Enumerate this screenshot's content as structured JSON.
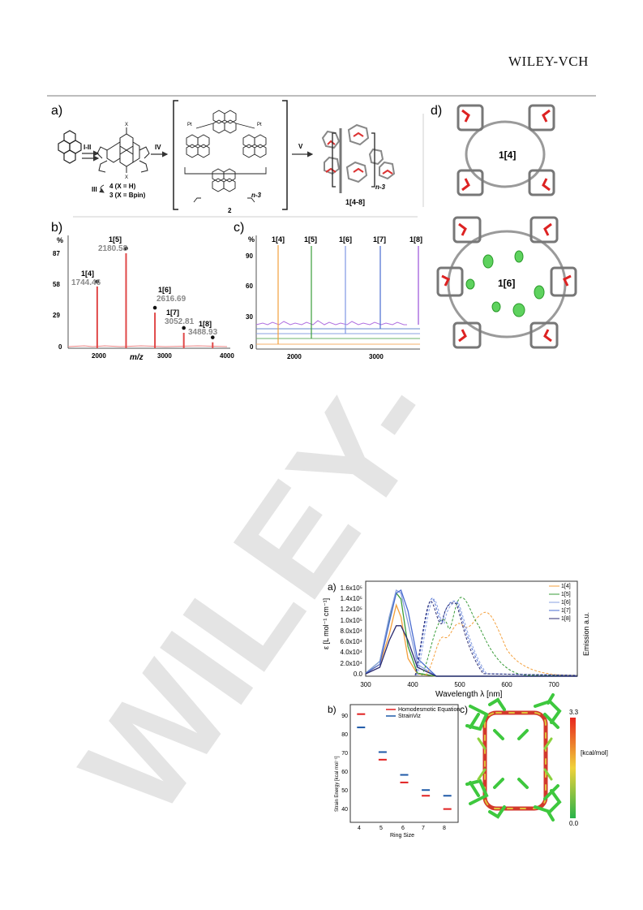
{
  "header": {
    "publisher": "WILEY-VCH"
  },
  "watermark": {
    "text": "WILEY-"
  },
  "figure1": {
    "a": {
      "label": "a)",
      "steps": [
        "I-II",
        "III",
        "IV",
        "V"
      ],
      "compound4": "4 (X = H)",
      "compound3": "3 (X = Bpin)",
      "compound2": "2",
      "n_label": "n-3",
      "product": "1[4-8]"
    },
    "b": {
      "label": "b)",
      "y_unit": "%",
      "y_ticks": [
        "87",
        "58",
        "29",
        "0"
      ],
      "x_ticks": [
        "2000",
        "3000",
        "4000"
      ],
      "xlabel": "m/z",
      "peaks": [
        {
          "name": "1[4]",
          "mz": "1744.46"
        },
        {
          "name": "1[5]",
          "mz": "2180.58"
        },
        {
          "name": "1[6]",
          "mz": "2616.69"
        },
        {
          "name": "1[7]",
          "mz": "3052.81"
        },
        {
          "name": "1[8]",
          "mz": "3488.93"
        }
      ]
    },
    "c": {
      "label": "c)",
      "y_unit": "%",
      "y_ticks": [
        "90",
        "60",
        "30",
        "0"
      ],
      "x_ticks": [
        "2000",
        "3000"
      ],
      "peaks": [
        "1[4]",
        "1[5]",
        "1[6]",
        "1[7]",
        "1[8]"
      ]
    },
    "d": {
      "label": "d)",
      "top": "1[4]",
      "bottom": "1[6]"
    }
  },
  "figure2": {
    "a": {
      "label": "a)",
      "ylabel": "ε [L mol⁻¹ cm⁻¹]",
      "y2label": "Emission a.u.",
      "xlabel": "Wavelength λ [nm]",
      "y_ticks": [
        "1.6x10⁵",
        "1.4x10⁵",
        "1.2x10⁵",
        "1.0x10⁵",
        "8.0x10⁴",
        "6.0x10⁴",
        "4.0x10⁴",
        "2.0x10⁴",
        "0.0"
      ],
      "x_ticks": [
        "300",
        "400",
        "500",
        "600",
        "700"
      ],
      "legend": [
        "1[4]",
        "1[5]",
        "1[6]",
        "1[7]",
        "1[8]"
      ]
    },
    "b": {
      "label": "b)",
      "ylabel": "Strain Energy [kcal mol⁻¹]",
      "xlabel": "Ring Size",
      "y_ticks": [
        "90",
        "80",
        "70",
        "60",
        "50",
        "40"
      ],
      "x_ticks": [
        "4",
        "5",
        "6",
        "7",
        "8"
      ],
      "legend": [
        "Homodesmotic Equation",
        "StrainViz"
      ]
    },
    "c": {
      "label": "c)",
      "scale_max": "3.3",
      "scale_min": "0.0",
      "scale_unit": "[kcal/mol]"
    }
  },
  "chart_data": [
    {
      "type": "bar",
      "title": "",
      "xlabel": "m/z",
      "ylabel": "%",
      "xlim": [
        1550,
        4000
      ],
      "ylim": [
        0,
        95
      ],
      "x": [
        1744.46,
        2180.58,
        2616.69,
        3052.81,
        3488.93
      ],
      "values": [
        52,
        80,
        30,
        13,
        5
      ]
    },
    {
      "type": "line",
      "xlabel": "Wavelength λ [nm]",
      "ylabel": "ε [L mol⁻¹ cm⁻¹]",
      "xlim": [
        300,
        750
      ],
      "ylim": [
        0,
        160000
      ],
      "x": [
        300,
        330,
        350,
        365,
        375,
        390,
        410,
        450
      ],
      "series": [
        {
          "name": "1[4]",
          "values": [
            5000,
            20000,
            70000,
            120000,
            100000,
            30000,
            4000,
            0
          ]
        },
        {
          "name": "1[5]",
          "values": [
            5000,
            25000,
            95000,
            140000,
            130000,
            50000,
            5000,
            0
          ]
        },
        {
          "name": "1[6]",
          "values": [
            5000,
            25000,
            100000,
            145000,
            140000,
            90000,
            20000,
            0
          ]
        },
        {
          "name": "1[7]",
          "values": [
            5000,
            20000,
            90000,
            140000,
            145000,
            110000,
            30000,
            0
          ]
        },
        {
          "name": "1[8]",
          "values": [
            4000,
            15000,
            60000,
            85000,
            85000,
            60000,
            15000,
            0
          ]
        }
      ]
    },
    {
      "type": "scatter",
      "xlabel": "Ring Size",
      "ylabel": "Strain Energy [kcal mol⁻¹]",
      "xlim": [
        3.5,
        8.5
      ],
      "ylim": [
        30,
        92
      ],
      "categories": [
        "4",
        "5",
        "6",
        "7",
        "8"
      ],
      "series": [
        {
          "name": "Homodesmotic Equation",
          "values": [
            87,
            63,
            51,
            44,
            37
          ]
        },
        {
          "name": "StrainViz",
          "values": [
            80,
            67,
            55,
            47,
            44
          ]
        }
      ]
    }
  ]
}
